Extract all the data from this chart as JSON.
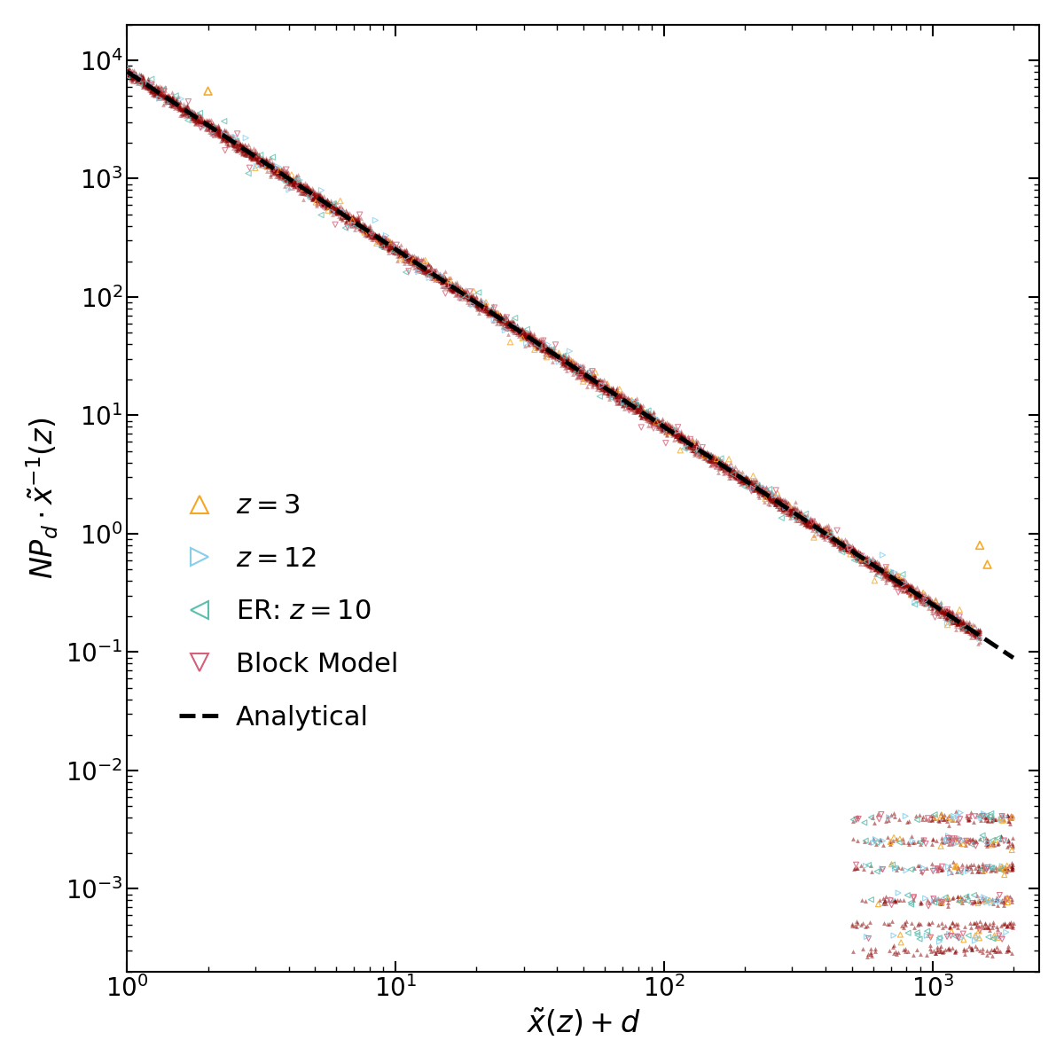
{
  "xlabel": "$\\tilde{x}(z) + d$",
  "ylabel": "$NP_d \\cdot \\tilde{x}^{-1}(z)$",
  "xlim": [
    1.0,
    2500
  ],
  "ylim": [
    0.0002,
    20000.0
  ],
  "analytical_color": "black",
  "analytical_lw": 3.5,
  "analytical_ls": "--",
  "color_z3": "#F5A623",
  "color_z12": "#87CEEB",
  "color_er": "#5BBFAF",
  "color_bm": "#D4607A",
  "color_main": "#8B0000",
  "background_color": "#ffffff",
  "fontsize": 24,
  "tick_fontsize": 20,
  "legend_fontsize": 22
}
